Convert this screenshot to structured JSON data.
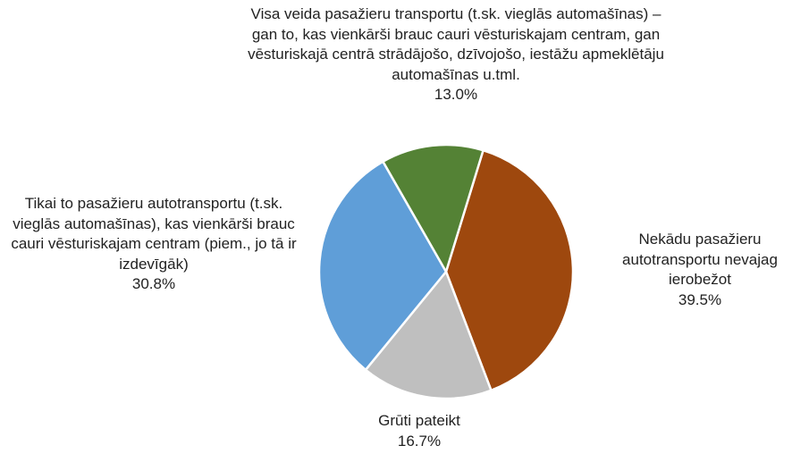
{
  "chart_data": {
    "type": "pie",
    "categories": [
      "Nekādu pasažieru autotransportu nevajag ierobežot",
      "Grūti pateikt",
      "Tikai to pasažieru autotransportu (t.sk. vieglās automašīnas), kas vienkārši brauc cauri vēsturiskajam centram (piem., jo tā ir izdevīgāk)",
      "Visa veida pasažieru transportu (t.sk. vieglās automašīnas) – gan to, kas vienkārši brauc cauri vēsturiskajam centram, gan vēsturiskajā centrā strādājošo, dzīvojošo, iestāžu apmeklētāju automašīnas u.tml."
    ],
    "values": [
      39.5,
      16.7,
      30.8,
      13.0
    ],
    "value_labels": [
      "39.5%",
      "16.7%",
      "30.8%",
      "13.0%"
    ],
    "colors": [
      "#9e480e",
      "#bfbfbf",
      "#5f9ed8",
      "#548235"
    ]
  }
}
